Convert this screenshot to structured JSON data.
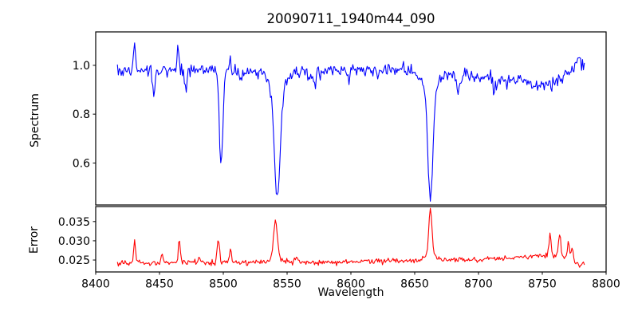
{
  "figure": {
    "background": "#ffffff",
    "axes_color": "#000000"
  },
  "chart_data": {
    "type": "line",
    "title": "20090711_1940m44_090",
    "xlabel": "Wavelength",
    "xlim": [
      8400,
      8800
    ],
    "x_ticks": [
      8400,
      8450,
      8500,
      8550,
      8600,
      8650,
      8700,
      8750,
      8800
    ],
    "x_tick_labels": [
      "8400",
      "8450",
      "8500",
      "8550",
      "8600",
      "8650",
      "8700",
      "8750",
      "8800"
    ],
    "x_data_range": [
      8417,
      8783
    ],
    "x_step": 0.75,
    "grid": false,
    "legend": "none",
    "panels": [
      {
        "name": "spectrum",
        "ylabel": "Spectrum",
        "line_color": "#0000ff",
        "ylim": [
          0.428,
          1.137
        ],
        "y_ticks": [
          0.6,
          0.8,
          1.0
        ],
        "y_tick_labels": [
          "0.6",
          "0.8",
          "1.0"
        ],
        "noise_sigma": 0.013,
        "seed": 42,
        "continuum_nodes": [
          [
            8417,
            0.975
          ],
          [
            8435,
            0.98
          ],
          [
            8460,
            0.98
          ],
          [
            8490,
            0.985
          ],
          [
            8520,
            0.98
          ],
          [
            8550,
            0.972
          ],
          [
            8585,
            0.978
          ],
          [
            8615,
            0.98
          ],
          [
            8640,
            0.975
          ],
          [
            8662,
            0.968
          ],
          [
            8690,
            0.958
          ],
          [
            8715,
            0.945
          ],
          [
            8735,
            0.93
          ],
          [
            8748,
            0.915
          ],
          [
            8758,
            0.925
          ],
          [
            8767,
            0.945
          ],
          [
            8774,
            0.985
          ],
          [
            8783,
            1.005
          ]
        ],
        "features": [
          {
            "center": 8430.5,
            "amplitude": 0.115,
            "sigma": 0.7
          },
          {
            "center": 8445.5,
            "amplitude": -0.095,
            "sigma": 1.0
          },
          {
            "center": 8464.5,
            "amplitude": 0.09,
            "sigma": 0.7
          },
          {
            "center": 8470.5,
            "amplitude": -0.08,
            "sigma": 0.9
          },
          {
            "center": 8498.2,
            "amplitude": -0.4,
            "sigma": 1.4
          },
          {
            "center": 8505.5,
            "amplitude": 0.05,
            "sigma": 0.7
          },
          {
            "center": 8514.0,
            "amplitude": -0.065,
            "sigma": 1.0
          },
          {
            "center": 8542.3,
            "amplitude": -0.45,
            "sigma": 2.2
          },
          {
            "center": 8542.3,
            "amplitude": -0.08,
            "sigma": 6.0
          },
          {
            "center": 8572.0,
            "amplitude": -0.05,
            "sigma": 1.3
          },
          {
            "center": 8598.0,
            "amplitude": -0.035,
            "sigma": 1.2
          },
          {
            "center": 8621.0,
            "amplitude": -0.03,
            "sigma": 1.0
          },
          {
            "center": 8641.0,
            "amplitude": 0.04,
            "sigma": 0.8
          },
          {
            "center": 8662.3,
            "amplitude": -0.45,
            "sigma": 1.9
          },
          {
            "center": 8662.3,
            "amplitude": -0.075,
            "sigma": 5.5
          },
          {
            "center": 8684.0,
            "amplitude": -0.065,
            "sigma": 1.3
          },
          {
            "center": 8713.0,
            "amplitude": -0.04,
            "sigma": 1.5
          },
          {
            "center": 8778.0,
            "amplitude": 0.035,
            "sigma": 1.2
          }
        ]
      },
      {
        "name": "error",
        "ylabel": "Error",
        "line_color": "#ff0000",
        "ylim": [
          0.0219,
          0.0389
        ],
        "y_ticks": [
          0.025,
          0.03,
          0.035
        ],
        "y_tick_labels": [
          "0.025",
          "0.030",
          "0.035"
        ],
        "noise_sigma": 0.00035,
        "seed": 7,
        "continuum_nodes": [
          [
            8417,
            0.0243
          ],
          [
            8450,
            0.0242
          ],
          [
            8500,
            0.0243
          ],
          [
            8545,
            0.0244
          ],
          [
            8580,
            0.0244
          ],
          [
            8620,
            0.0247
          ],
          [
            8655,
            0.0249
          ],
          [
            8690,
            0.0251
          ],
          [
            8720,
            0.0254
          ],
          [
            8745,
            0.0259
          ],
          [
            8762,
            0.026
          ],
          [
            8771,
            0.0257
          ],
          [
            8776,
            0.0239
          ],
          [
            8783,
            0.0238
          ]
        ],
        "features": [
          {
            "center": 8430.5,
            "amplitude": 0.0063,
            "sigma": 0.7
          },
          {
            "center": 8452.0,
            "amplitude": 0.0026,
            "sigma": 0.7
          },
          {
            "center": 8465.5,
            "amplitude": 0.0058,
            "sigma": 0.8
          },
          {
            "center": 8481.0,
            "amplitude": 0.0013,
            "sigma": 0.8
          },
          {
            "center": 8496.0,
            "amplitude": 0.006,
            "sigma": 1.0
          },
          {
            "center": 8505.5,
            "amplitude": 0.0035,
            "sigma": 0.8
          },
          {
            "center": 8540.8,
            "amplitude": 0.0095,
            "sigma": 1.5
          },
          {
            "center": 8540.8,
            "amplitude": 0.001,
            "sigma": 5.0
          },
          {
            "center": 8557.0,
            "amplitude": 0.0014,
            "sigma": 1.2
          },
          {
            "center": 8662.3,
            "amplitude": 0.0118,
            "sigma": 1.2
          },
          {
            "center": 8662.3,
            "amplitude": 0.0012,
            "sigma": 4.0
          },
          {
            "center": 8756.0,
            "amplitude": 0.0055,
            "sigma": 0.9
          },
          {
            "center": 8763.5,
            "amplitude": 0.0058,
            "sigma": 0.9
          },
          {
            "center": 8770.5,
            "amplitude": 0.0042,
            "sigma": 0.8
          },
          {
            "center": 8773.5,
            "amplitude": 0.0038,
            "sigma": 0.8
          }
        ]
      }
    ]
  }
}
